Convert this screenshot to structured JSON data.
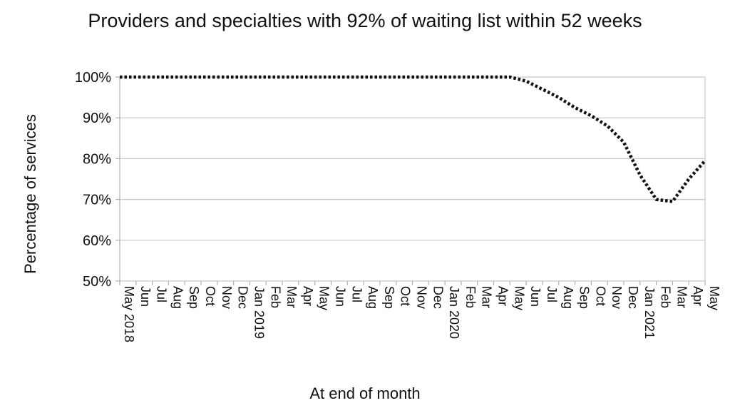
{
  "chart_data": {
    "type": "line",
    "title": "Providers and specialties with 92% of waiting list within 52 weeks",
    "xlabel": "At end of month",
    "ylabel": "Percentage of services",
    "ylim": [
      50,
      100
    ],
    "yticks": [
      50,
      60,
      70,
      80,
      90,
      100
    ],
    "y_tick_suffix": "%",
    "grid": "horizontal",
    "legend": "none",
    "line_style": "dotted",
    "line_color": "#111111",
    "categories": [
      "May 2018",
      "Jun",
      "Jul",
      "Aug",
      "Sep",
      "Oct",
      "Nov",
      "Dec",
      "Jan 2019",
      "Feb",
      "Mar",
      "Apr",
      "May",
      "Jun",
      "Jul",
      "Aug",
      "Sep",
      "Oct",
      "Nov",
      "Dec",
      "Jan 2020",
      "Feb",
      "Mar",
      "Apr",
      "May",
      "Jun",
      "Jul",
      "Aug",
      "Sep",
      "Oct",
      "Nov",
      "Dec",
      "Jan 2021",
      "Feb",
      "Mar",
      "Apr",
      "May"
    ],
    "series": [
      {
        "values": [
          100,
          100,
          100,
          100,
          100,
          100,
          100,
          100,
          100,
          100,
          100,
          100,
          100,
          100,
          100,
          100,
          100,
          100,
          100,
          100,
          100,
          100,
          100,
          100,
          100,
          99,
          97,
          95,
          92.5,
          90.5,
          88,
          84,
          76,
          70,
          69.5,
          75,
          79.5
        ]
      }
    ]
  }
}
